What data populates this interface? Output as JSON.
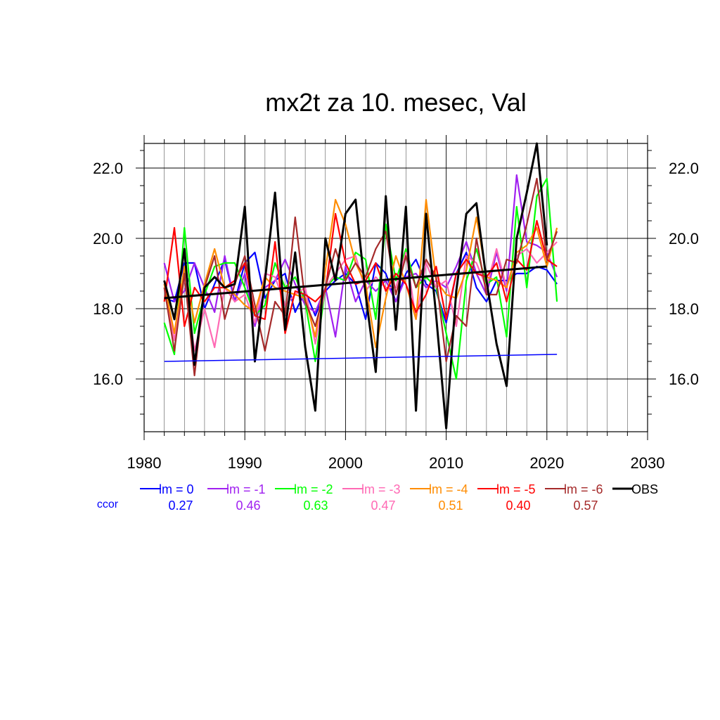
{
  "chart_data": {
    "type": "line",
    "title": "mx2t za 10. mesec, Val",
    "xlabel": "",
    "ylabel": "",
    "xlim": [
      1980,
      2030
    ],
    "ylim": [
      14.5,
      22.7
    ],
    "x_ticks": [
      "1980",
      "1990",
      "2000",
      "2010",
      "2020",
      "2030"
    ],
    "y_ticks": [
      "16.0",
      "18.0",
      "20.0",
      "22.0"
    ],
    "y_tick_values": [
      16,
      18,
      20,
      22
    ],
    "x_tick_values": [
      1980,
      1990,
      2000,
      2010,
      2020,
      2030
    ],
    "grid": true,
    "legend_position": "bottom",
    "ccor_label": "ccor",
    "x": [
      1982,
      1983,
      1984,
      1985,
      1986,
      1987,
      1988,
      1989,
      1990,
      1991,
      1992,
      1993,
      1994,
      1995,
      1996,
      1997,
      1998,
      1999,
      2000,
      2001,
      2002,
      2003,
      2004,
      2005,
      2006,
      2007,
      2008,
      2009,
      2010,
      2011,
      2012,
      2013,
      2014,
      2015,
      2016,
      2017,
      2018,
      2019,
      2020,
      2021
    ],
    "series": [
      {
        "name": "lm = 0",
        "color": "#0000ff",
        "ccor": "0.27",
        "values": [
          18.3,
          18.2,
          19.3,
          19.3,
          18.0,
          18.7,
          19.4,
          18.2,
          19.3,
          19.6,
          18.3,
          18.8,
          19.0,
          17.9,
          18.5,
          17.8,
          18.5,
          18.8,
          19.0,
          18.7,
          17.7,
          19.3,
          19.0,
          18.2,
          19.0,
          19.4,
          18.7,
          18.5,
          17.6,
          19.0,
          19.6,
          18.6,
          18.2,
          18.8,
          18.8,
          19.0,
          19.0,
          19.2,
          19.1,
          18.7
        ],
        "trend": [
          16.5,
          16.7
        ]
      },
      {
        "name": "lm = -1",
        "color": "#a020f0",
        "ccor": "0.46",
        "values": [
          19.3,
          18.2,
          18.5,
          19.3,
          18.6,
          17.9,
          19.5,
          18.2,
          19.0,
          17.5,
          18.6,
          18.8,
          19.4,
          18.7,
          18.1,
          17.9,
          18.6,
          17.2,
          19.2,
          18.2,
          18.8,
          18.5,
          18.8,
          18.2,
          18.9,
          19.0,
          18.6,
          18.8,
          18.6,
          19.2,
          19.9,
          19.0,
          18.4,
          19.6,
          18.5,
          21.8,
          19.9,
          19.8,
          19.6,
          18.9
        ],
        "trend": null
      },
      {
        "name": "lm = -2",
        "color": "#00ff00",
        "ccor": "0.63",
        "values": [
          17.6,
          16.7,
          20.3,
          17.3,
          18.4,
          19.2,
          19.3,
          19.3,
          18.6,
          17.8,
          18.1,
          19.3,
          18.6,
          18.9,
          18.2,
          16.5,
          18.6,
          18.9,
          18.8,
          19.6,
          19.4,
          17.7,
          20.4,
          18.8,
          19.7,
          18.6,
          18.9,
          18.6,
          17.3,
          16.0,
          18.8,
          19.7,
          18.7,
          18.9,
          17.2,
          20.9,
          18.6,
          21.2,
          21.7,
          18.2
        ],
        "trend": null
      },
      {
        "name": "lm = -3",
        "color": "#ff69b4",
        "ccor": "0.47",
        "values": [
          18.7,
          17.1,
          18.9,
          16.8,
          18.0,
          16.9,
          18.6,
          18.2,
          18.4,
          17.6,
          19.0,
          18.9,
          18.1,
          18.4,
          18.6,
          17.0,
          18.6,
          19.0,
          19.4,
          19.5,
          18.5,
          18.9,
          18.6,
          18.6,
          19.6,
          17.7,
          19.3,
          18.6,
          18.8,
          17.5,
          19.5,
          19.3,
          18.6,
          19.7,
          18.6,
          19.5,
          19.7,
          19.3,
          19.6,
          19.9
        ],
        "trend": null
      },
      {
        "name": "lm = -4",
        "color": "#ff8c00",
        "ccor": "0.51",
        "values": [
          18.7,
          17.3,
          19.2,
          17.6,
          18.7,
          19.7,
          18.6,
          18.4,
          18.1,
          17.9,
          18.9,
          18.6,
          18.5,
          18.4,
          18.3,
          17.2,
          19.1,
          21.1,
          20.4,
          19.3,
          18.7,
          16.9,
          18.3,
          19.5,
          18.7,
          17.7,
          21.1,
          18.8,
          18.4,
          18.3,
          19.1,
          20.6,
          18.9,
          18.8,
          18.6,
          19.6,
          19.8,
          20.3,
          19.2,
          20.3
        ],
        "trend": null
      },
      {
        "name": "lm = -5",
        "color": "#ff0000",
        "ccor": "0.40",
        "values": [
          18.2,
          20.3,
          17.5,
          18.6,
          18.2,
          18.6,
          18.6,
          18.8,
          19.3,
          17.8,
          17.7,
          19.9,
          17.3,
          18.5,
          18.4,
          18.2,
          18.5,
          20.7,
          19.3,
          18.7,
          18.8,
          19.3,
          18.5,
          19.0,
          18.7,
          17.9,
          18.4,
          19.2,
          17.7,
          19.0,
          19.4,
          19.0,
          18.9,
          19.3,
          18.2,
          19.4,
          19.1,
          20.5,
          19.4,
          19.2
        ],
        "trend": null
      },
      {
        "name": "lm = -6",
        "color": "#a52a2a",
        "ccor": "0.57",
        "values": [
          18.6,
          16.8,
          19.0,
          16.1,
          18.6,
          19.5,
          17.7,
          18.7,
          19.5,
          18.1,
          16.8,
          18.2,
          17.8,
          20.6,
          18.2,
          17.5,
          18.6,
          19.7,
          18.8,
          19.3,
          18.9,
          19.7,
          20.2,
          18.4,
          19.5,
          18.6,
          19.4,
          18.9,
          16.5,
          17.8,
          17.5,
          20.0,
          18.4,
          18.4,
          19.4,
          19.3,
          20.4,
          21.7,
          19.4,
          20.2
        ],
        "trend": null
      },
      {
        "name": "OBS",
        "color": "#000000",
        "ccor": "",
        "values": [
          18.8,
          17.7,
          19.7,
          16.4,
          18.6,
          18.9,
          18.6,
          18.7,
          20.9,
          16.5,
          18.8,
          21.3,
          17.4,
          19.6,
          16.9,
          15.1,
          20.0,
          18.8,
          20.7,
          21.1,
          18.4,
          16.2,
          21.2,
          17.4,
          20.9,
          15.1,
          20.7,
          17.8,
          14.6,
          18.5,
          20.7,
          21.0,
          18.8,
          17.0,
          15.8,
          20.0,
          21.3,
          22.7,
          19.8,
          null
        ],
        "trend": [
          18.3,
          19.2
        ]
      }
    ]
  }
}
